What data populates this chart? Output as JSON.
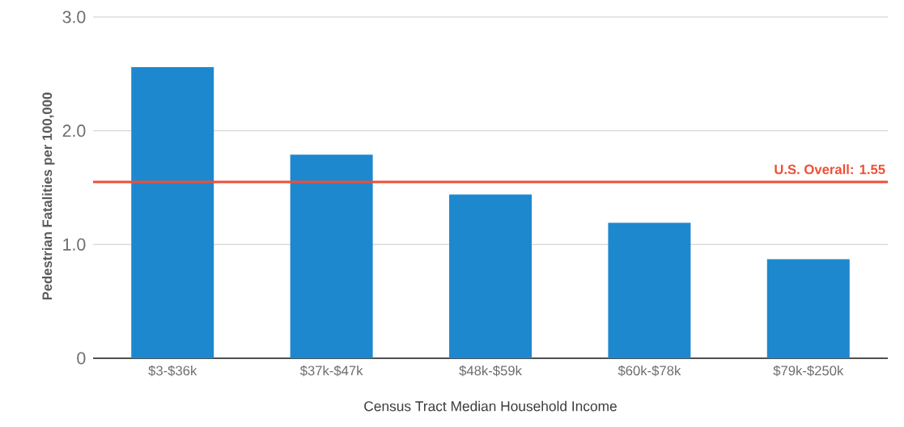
{
  "chart_data": {
    "type": "bar",
    "xlabel": "Census Tract Median Household Income",
    "ylabel": "Pedestrian Fatalities per 100,000",
    "categories": [
      "$3-$36k",
      "$37k-$47k",
      "$48k-$59k",
      "$60k-$78k",
      "$79k-$250k"
    ],
    "values": [
      2.56,
      1.79,
      1.44,
      1.19,
      0.87
    ],
    "color": "#1e88cf",
    "ylim": [
      0,
      3.0
    ],
    "yticks": [
      0,
      {
        "value": 1,
        "label": "1.0"
      },
      {
        "value": 2,
        "label": "2.0"
      },
      {
        "value": 3,
        "label": "3.0"
      }
    ],
    "grid": "y",
    "ref_lines": [
      {
        "axis": "y",
        "value": 1.55,
        "label": "U.S. Overall: 1.55",
        "color": "#f04e37"
      }
    ]
  }
}
